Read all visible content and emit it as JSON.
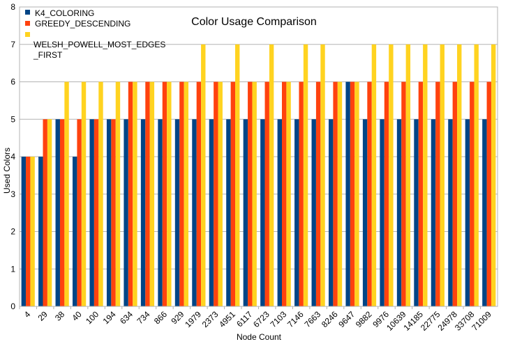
{
  "chart_data": {
    "type": "bar",
    "title": "Color Usage Comparison",
    "xlabel": "Node Count",
    "ylabel": "Used Colors",
    "ylim": [
      0,
      8
    ],
    "yticks": [
      0,
      1,
      2,
      3,
      4,
      5,
      6,
      7,
      8
    ],
    "grid": true,
    "legend_position": "top-left",
    "categories": [
      "4",
      "29",
      "38",
      "40",
      "100",
      "194",
      "634",
      "734",
      "866",
      "929",
      "1979",
      "2373",
      "4951",
      "6117",
      "6723",
      "7103",
      "7146",
      "7663",
      "8246",
      "9647",
      "9882",
      "9976",
      "10639",
      "14185",
      "22775",
      "24978",
      "33708",
      "71009"
    ],
    "series": [
      {
        "name": "K4_COLORING",
        "color": "#004586",
        "values": [
          4,
          4,
          5,
          4,
          5,
          5,
          5,
          5,
          5,
          5,
          5,
          5,
          5,
          5,
          5,
          5,
          5,
          5,
          5,
          6,
          5,
          5,
          5,
          5,
          5,
          5,
          5,
          5
        ]
      },
      {
        "name": "GREEDY_DESCENDING",
        "color": "#ff420e",
        "values": [
          4,
          5,
          5,
          5,
          5,
          5,
          6,
          6,
          6,
          6,
          6,
          6,
          6,
          6,
          6,
          6,
          6,
          6,
          6,
          6,
          6,
          6,
          6,
          6,
          6,
          6,
          6,
          6
        ]
      },
      {
        "name": "WELSH_POWELL_MOST_EDGES_FIRST",
        "legend_lines": [
          "WELSH_POWELL_MOST_EDGES",
          "_FIRST"
        ],
        "color": "#ffd320",
        "values": [
          4,
          5,
          6,
          6,
          6,
          6,
          6,
          6,
          6,
          6,
          7,
          6,
          7,
          6,
          7,
          6,
          7,
          7,
          6,
          6,
          7,
          7,
          7,
          7,
          7,
          7,
          7,
          7
        ]
      }
    ]
  }
}
